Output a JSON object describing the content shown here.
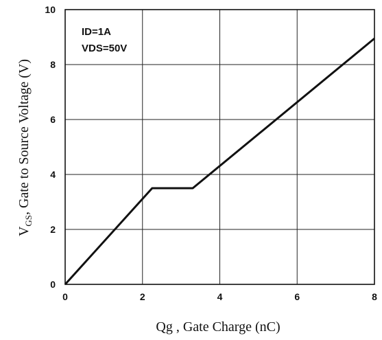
{
  "chart_data": {
    "type": "line",
    "title": "",
    "xlabel": "Qg , Gate Charge (nC)",
    "ylabel_main": "V",
    "ylabel_sub": "GS",
    "ylabel_rest": ", Gate to Source Voltage (V)",
    "xlim": [
      0,
      8
    ],
    "ylim": [
      0,
      10
    ],
    "x_ticks": [
      "0",
      "2",
      "4",
      "6",
      "8"
    ],
    "y_ticks": [
      "0",
      "2",
      "4",
      "6",
      "8",
      "10"
    ],
    "grid": true,
    "annotations": [
      "ID=1A",
      "VDS=50V"
    ],
    "series": [
      {
        "x": [
          0,
          2.25,
          3.3,
          8
        ],
        "y": [
          0,
          3.5,
          3.5,
          8.95
        ]
      }
    ],
    "line_color": "#111111",
    "grid_color": "#222222"
  }
}
